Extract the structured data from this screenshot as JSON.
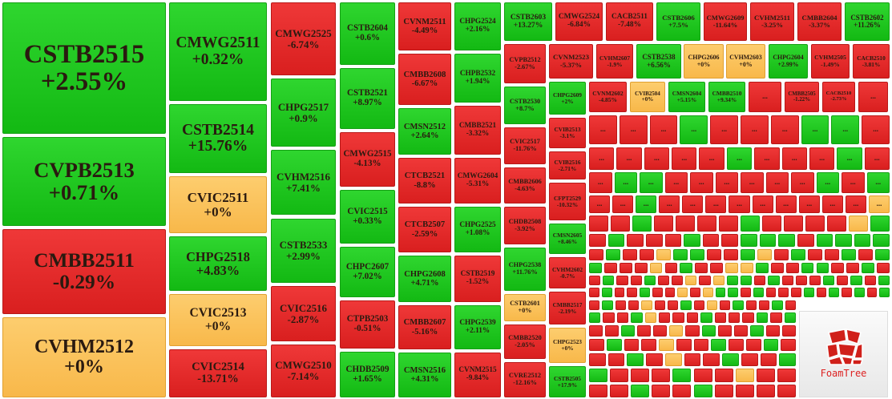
{
  "tiles": [
    {
      "name": "CSTB2515",
      "change": "+2.55%"
    },
    {
      "name": "CVPB2513",
      "change": "+0.71%"
    },
    {
      "name": "CMBB2511",
      "change": "-0.29%"
    },
    {
      "name": "CVHM2512",
      "change": "+0%"
    },
    {
      "name": "CMWG2511",
      "change": "+0.32%"
    },
    {
      "name": "CSTB2514",
      "change": "+15.76%"
    },
    {
      "name": "CVIC2511",
      "change": "+0%"
    },
    {
      "name": "CHPG2518",
      "change": "+4.83%"
    },
    {
      "name": "CVIC2513",
      "change": "+0%"
    },
    {
      "name": "CVIC2514",
      "change": "-13.71%"
    },
    {
      "name": "CMWG2525",
      "change": "-6.74%"
    },
    {
      "name": "CHPG2517",
      "change": "+0.9%"
    },
    {
      "name": "CVHM2516",
      "change": "+7.41%"
    },
    {
      "name": "CSTB2533",
      "change": "+2.99%"
    },
    {
      "name": "CVIC2516",
      "change": "-2.87%"
    },
    {
      "name": "CMWG2510",
      "change": "-7.14%"
    },
    {
      "name": "CSTB2604",
      "change": "+0.6%"
    },
    {
      "name": "CSTB2521",
      "change": "+8.97%"
    },
    {
      "name": "CMWG2515",
      "change": "-4.13%"
    },
    {
      "name": "CVIC2515",
      "change": "+0.33%"
    },
    {
      "name": "CHPC2607",
      "change": "+7.02%"
    },
    {
      "name": "CTPB2503",
      "change": "-0.51%"
    },
    {
      "name": "CHDB2509",
      "change": "+1.65%"
    },
    {
      "name": "CVNM2511",
      "change": "-4.49%"
    },
    {
      "name": "CMBB2608",
      "change": "-6.67%"
    },
    {
      "name": "CMSN2512",
      "change": "+2.64%"
    },
    {
      "name": "CTCB2521",
      "change": "-8.8%"
    },
    {
      "name": "CTCB2507",
      "change": "-2.59%"
    },
    {
      "name": "CHPG2608",
      "change": "+4.71%"
    },
    {
      "name": "CMBB2607",
      "change": "-5.16%"
    },
    {
      "name": "CMSN2516",
      "change": "+4.31%"
    },
    {
      "name": "CHPG2524",
      "change": "+2.16%"
    },
    {
      "name": "CHPB2532",
      "change": "+1.94%"
    },
    {
      "name": "CMBB2521",
      "change": "-3.32%"
    },
    {
      "name": "CMWG2604",
      "change": "-5.31%"
    },
    {
      "name": "CHPG2525",
      "change": "+1.08%"
    },
    {
      "name": "CSTB2519",
      "change": "-1.52%"
    },
    {
      "name": "CHPG2539",
      "change": "+2.11%"
    },
    {
      "name": "CVNM2515",
      "change": "-9.84%"
    },
    {
      "name": "CSTB2603",
      "change": "+13.27%"
    },
    {
      "name": "CMWG2524",
      "change": "-6.84%"
    },
    {
      "name": "CACB2511",
      "change": "-7.48%"
    },
    {
      "name": "CSTB2606",
      "change": "+7.5%"
    },
    {
      "name": "CMWG2609",
      "change": "-11.64%"
    },
    {
      "name": "CVHM2511",
      "change": "-3.25%"
    },
    {
      "name": "CMBB2604",
      "change": "-3.37%"
    },
    {
      "name": "CSTB2602",
      "change": "+11.26%"
    },
    {
      "name": "CVPB2512",
      "change": "-2.67%"
    },
    {
      "name": "CVNM2523",
      "change": "-5.37%"
    },
    {
      "name": "CVHM2607",
      "change": "-1.9%"
    },
    {
      "name": "CSTB2538",
      "change": "+6.56%"
    },
    {
      "name": "CHPG2606",
      "change": "+0%"
    },
    {
      "name": "CVHM2603",
      "change": "+0%"
    },
    {
      "name": "CHPG2604",
      "change": "+2.99%"
    },
    {
      "name": "CVHM2505",
      "change": "-1.49%"
    },
    {
      "name": "CACB2510",
      "change": "-3.81%"
    },
    {
      "name": "CSTB2530",
      "change": "+8.7%"
    },
    {
      "name": "CHPG2609",
      "change": "+2%"
    },
    {
      "name": "CVNM2602",
      "change": "-4.85%"
    },
    {
      "name": "CVIB2504",
      "change": "+0%"
    },
    {
      "name": "CMSN2604",
      "change": "+5.15%"
    },
    {
      "name": "CMBB2510",
      "change": "+9.34%"
    },
    {
      "name": "CMBB2505",
      "change": "-1.22%"
    },
    {
      "name": "CACB2510",
      "change": "-2.73%"
    },
    {
      "name": "CVIC2517",
      "change": "-11.76%"
    },
    {
      "name": "CVIB2513",
      "change": "-3.1%"
    },
    {
      "name": "CVIB2516",
      "change": "-2.71%"
    },
    {
      "name": "CMBB2606",
      "change": "-4.63%"
    },
    {
      "name": "CFPT2529",
      "change": "-10.32%"
    },
    {
      "name": "CHDB2508",
      "change": "-3.92%"
    },
    {
      "name": "CMSN2605",
      "change": "+8.46%"
    },
    {
      "name": "CHPG2538",
      "change": "+11.76%"
    },
    {
      "name": "CVHM2602",
      "change": "-0.7%"
    },
    {
      "name": "CSTB2601",
      "change": "+0%"
    },
    {
      "name": "CMBB2517",
      "change": "-2.19%"
    },
    {
      "name": "CMBB2520",
      "change": "-2.05%"
    },
    {
      "name": "CHPG2523",
      "change": "+0%"
    },
    {
      "name": "CVRE2512",
      "change": "-12.16%"
    },
    {
      "name": "CSTB2505",
      "change": "+17.9%"
    }
  ],
  "ellipsis": "...",
  "logo_text": "FoamTree"
}
